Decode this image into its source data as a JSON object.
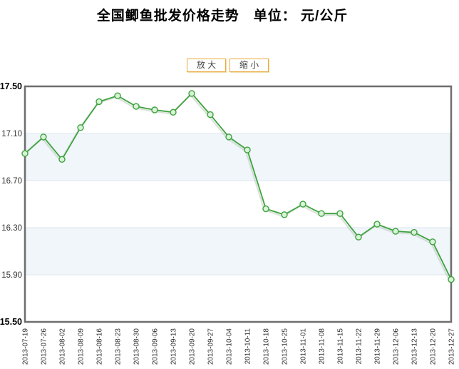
{
  "title": "全国鲫鱼批发价格走势　单位： 元/公斤",
  "controls": {
    "zoom_in": "放 大",
    "zoom_out": "缩 小"
  },
  "chart_data": {
    "type": "line",
    "title": "全国鲫鱼批发价格走势",
    "unit_label": "元/公斤",
    "x": [
      "2013-07-19",
      "2013-07-26",
      "2013-08-02",
      "2013-08-09",
      "2013-08-16",
      "2013-08-23",
      "2013-08-30",
      "2013-09-06",
      "2013-09-13",
      "2013-09-20",
      "2013-09-27",
      "2013-10-04",
      "2013-10-11",
      "2013-10-18",
      "2013-10-25",
      "2013-11-01",
      "2013-11-08",
      "2013-11-15",
      "2013-11-22",
      "2013-11-29",
      "2013-12-06",
      "2013-12-13",
      "2013-12-20",
      "2013-12-27"
    ],
    "values": [
      16.93,
      17.07,
      16.88,
      17.15,
      17.37,
      17.42,
      17.33,
      17.3,
      17.28,
      17.44,
      17.26,
      17.07,
      16.96,
      16.46,
      16.41,
      16.5,
      16.42,
      16.42,
      16.22,
      16.33,
      16.27,
      16.26,
      16.18,
      15.86
    ],
    "ylim": [
      15.5,
      17.5
    ],
    "yticks": [
      17.5,
      17.1,
      16.7,
      16.3,
      15.9,
      15.5
    ],
    "grid": "alternating horizontal bands between gridlines",
    "legend": "none"
  },
  "colors": {
    "line": "#3EA23E",
    "marker_fill": "#D9F3D9",
    "marker_stroke": "#3EA23E",
    "band_fill": "#F1F6FB",
    "band_edge": "#DCE5EF",
    "plot_border": "#6E6E6E",
    "tick_label": "#333333",
    "tick_label_strong": "#000000",
    "button_border": "#E9A93D",
    "button_text": "#444444"
  }
}
